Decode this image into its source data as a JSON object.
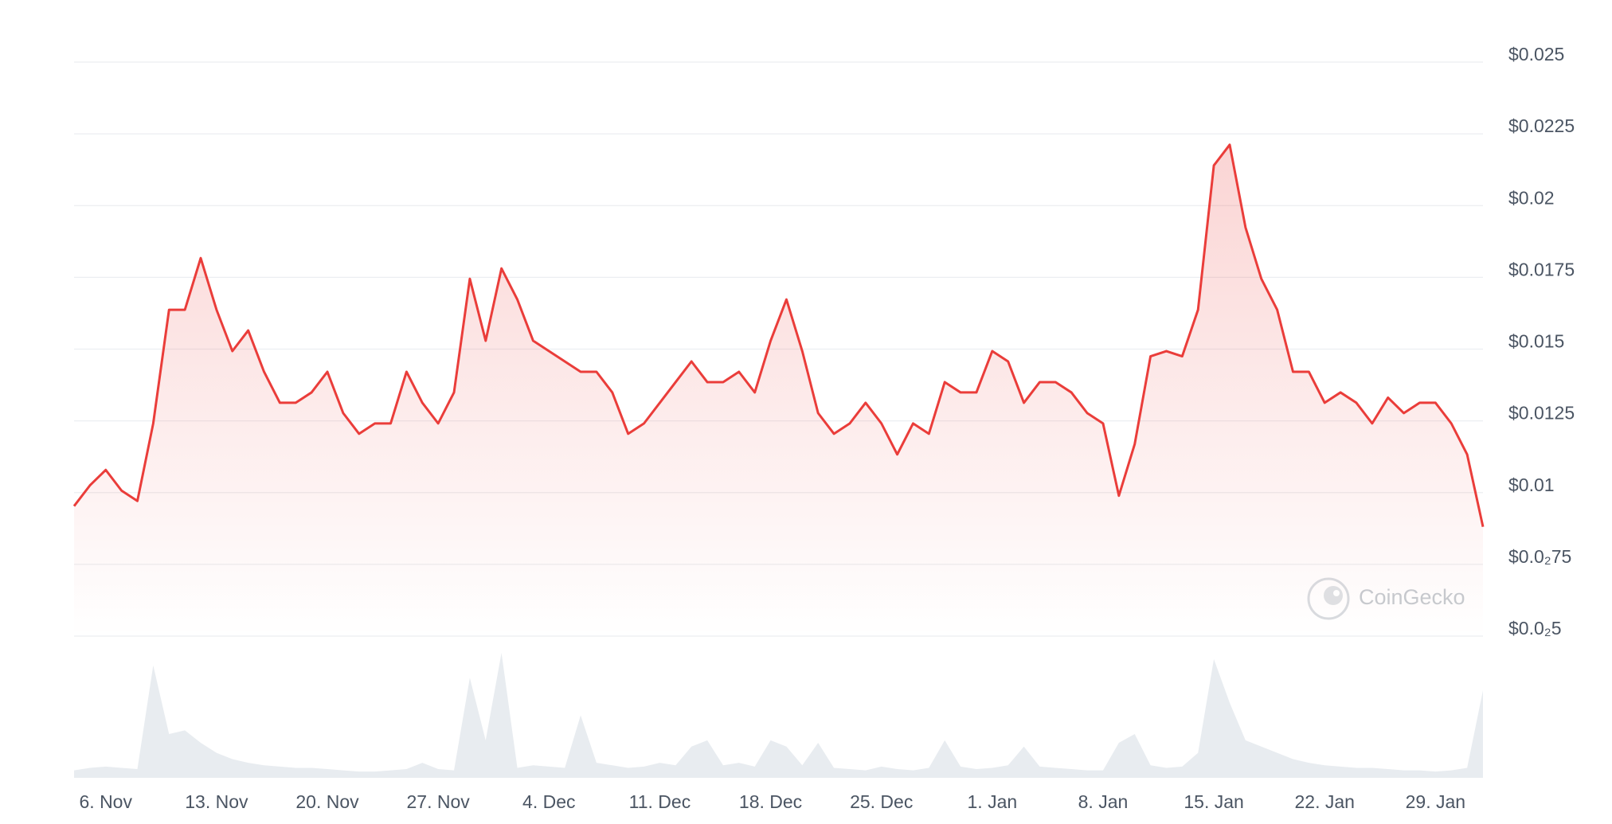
{
  "chart_data": {
    "type": "line",
    "x": [
      "4. Nov",
      "5. Nov",
      "6. Nov",
      "7. Nov",
      "8. Nov",
      "9. Nov",
      "10. Nov",
      "11. Nov",
      "12. Nov",
      "13. Nov",
      "14. Nov",
      "15. Nov",
      "16. Nov",
      "17. Nov",
      "18. Nov",
      "19. Nov",
      "20. Nov",
      "21. Nov",
      "22. Nov",
      "23. Nov",
      "24. Nov",
      "25. Nov",
      "26. Nov",
      "27. Nov",
      "28. Nov",
      "29. Nov",
      "30. Nov",
      "1. Dec",
      "2. Dec",
      "3. Dec",
      "4. Dec",
      "5. Dec",
      "6. Dec",
      "7. Dec",
      "8. Dec",
      "9. Dec",
      "10. Dec",
      "11. Dec",
      "12. Dec",
      "13. Dec",
      "14. Dec",
      "15. Dec",
      "16. Dec",
      "17. Dec",
      "18. Dec",
      "19. Dec",
      "20. Dec",
      "21. Dec",
      "22. Dec",
      "23. Dec",
      "24. Dec",
      "25. Dec",
      "26. Dec",
      "27. Dec",
      "28. Dec",
      "29. Dec",
      "30. Dec",
      "31. Dec",
      "1. Jan",
      "2. Jan",
      "3. Jan",
      "4. Jan",
      "5. Jan",
      "6. Jan",
      "7. Jan",
      "8. Jan",
      "9. Jan",
      "10. Jan",
      "11. Jan",
      "12. Jan",
      "13. Jan",
      "14. Jan",
      "15. Jan",
      "16. Jan",
      "17. Jan",
      "18. Jan",
      "19. Jan",
      "20. Jan",
      "21. Jan",
      "22. Jan",
      "23. Jan",
      "24. Jan",
      "25. Jan",
      "26. Jan",
      "27. Jan",
      "28. Jan",
      "29. Jan",
      "30. Jan",
      "31. Jan",
      "1. Feb"
    ],
    "series": [
      {
        "color": "#ea3d3a",
        "values": [
          0.00953,
          0.01025,
          0.01079,
          0.01007,
          0.00971,
          0.01241,
          0.01637,
          0.01637,
          0.01817,
          0.01637,
          0.01493,
          0.01565,
          0.01421,
          0.01313,
          0.01313,
          0.01349,
          0.01421,
          0.01277,
          0.01205,
          0.01241,
          0.01241,
          0.01421,
          0.01313,
          0.01241,
          0.01349,
          0.01745,
          0.01529,
          0.01781,
          0.01673,
          0.01529,
          0.01493,
          0.01457,
          0.01421,
          0.01421,
          0.01349,
          0.01205,
          0.01241,
          0.01313,
          0.01385,
          0.01457,
          0.01385,
          0.01385,
          0.01421,
          0.01349,
          0.01529,
          0.01673,
          0.01493,
          0.01277,
          0.01205,
          0.01241,
          0.01313,
          0.01241,
          0.01133,
          0.01241,
          0.01205,
          0.01385,
          0.01349,
          0.01349,
          0.01493,
          0.01457,
          0.01313,
          0.01385,
          0.01385,
          0.01349,
          0.01277,
          0.01241,
          0.00989,
          0.01169,
          0.01475,
          0.01493,
          0.01475,
          0.01637,
          0.0214,
          0.02212,
          0.01924,
          0.01745,
          0.01637,
          0.01421,
          0.01421,
          0.01313,
          0.01349,
          0.01313,
          0.01241,
          0.01331,
          0.01277,
          0.01313,
          0.01313,
          0.01241,
          0.01133,
          0.00881
        ]
      }
    ],
    "volume": {
      "color": "#e8ecf0",
      "values": [
        6,
        8,
        9,
        8,
        7,
        90,
        35,
        38,
        28,
        20,
        15,
        12,
        10,
        9,
        8,
        8,
        7,
        6,
        5,
        5,
        6,
        7,
        12,
        7,
        6,
        80,
        30,
        100,
        8,
        10,
        9,
        8,
        50,
        12,
        10,
        8,
        9,
        12,
        10,
        25,
        30,
        10,
        12,
        9,
        30,
        25,
        10,
        28,
        8,
        7,
        6,
        9,
        7,
        6,
        8,
        30,
        9,
        7,
        8,
        10,
        25,
        9,
        8,
        7,
        6,
        6,
        28,
        35,
        10,
        8,
        9,
        20,
        95,
        60,
        30,
        25,
        20,
        15,
        12,
        10,
        9,
        8,
        8,
        7,
        6,
        6,
        5,
        6,
        8,
        70
      ]
    },
    "xticks": [
      "6. Nov",
      "13. Nov",
      "20. Nov",
      "27. Nov",
      "4. Dec",
      "11. Dec",
      "18. Dec",
      "25. Dec",
      "1. Jan",
      "8. Jan",
      "15. Jan",
      "22. Jan",
      "29. Jan"
    ],
    "ylim": [
      0.005,
      0.025
    ],
    "yticks": [
      {
        "value": 0.005,
        "label": "$0.0₂5"
      },
      {
        "value": 0.0075,
        "label": "$0.0₂75"
      },
      {
        "value": 0.01,
        "label": "$0.01"
      },
      {
        "value": 0.0125,
        "label": "$0.0125"
      },
      {
        "value": 0.015,
        "label": "$0.015"
      },
      {
        "value": 0.0175,
        "label": "$0.0175"
      },
      {
        "value": 0.02,
        "label": "$0.02"
      },
      {
        "value": 0.0225,
        "label": "$0.0225"
      },
      {
        "value": 0.025,
        "label": "$0.025"
      }
    ],
    "grid": true,
    "watermark": "CoinGecko"
  }
}
